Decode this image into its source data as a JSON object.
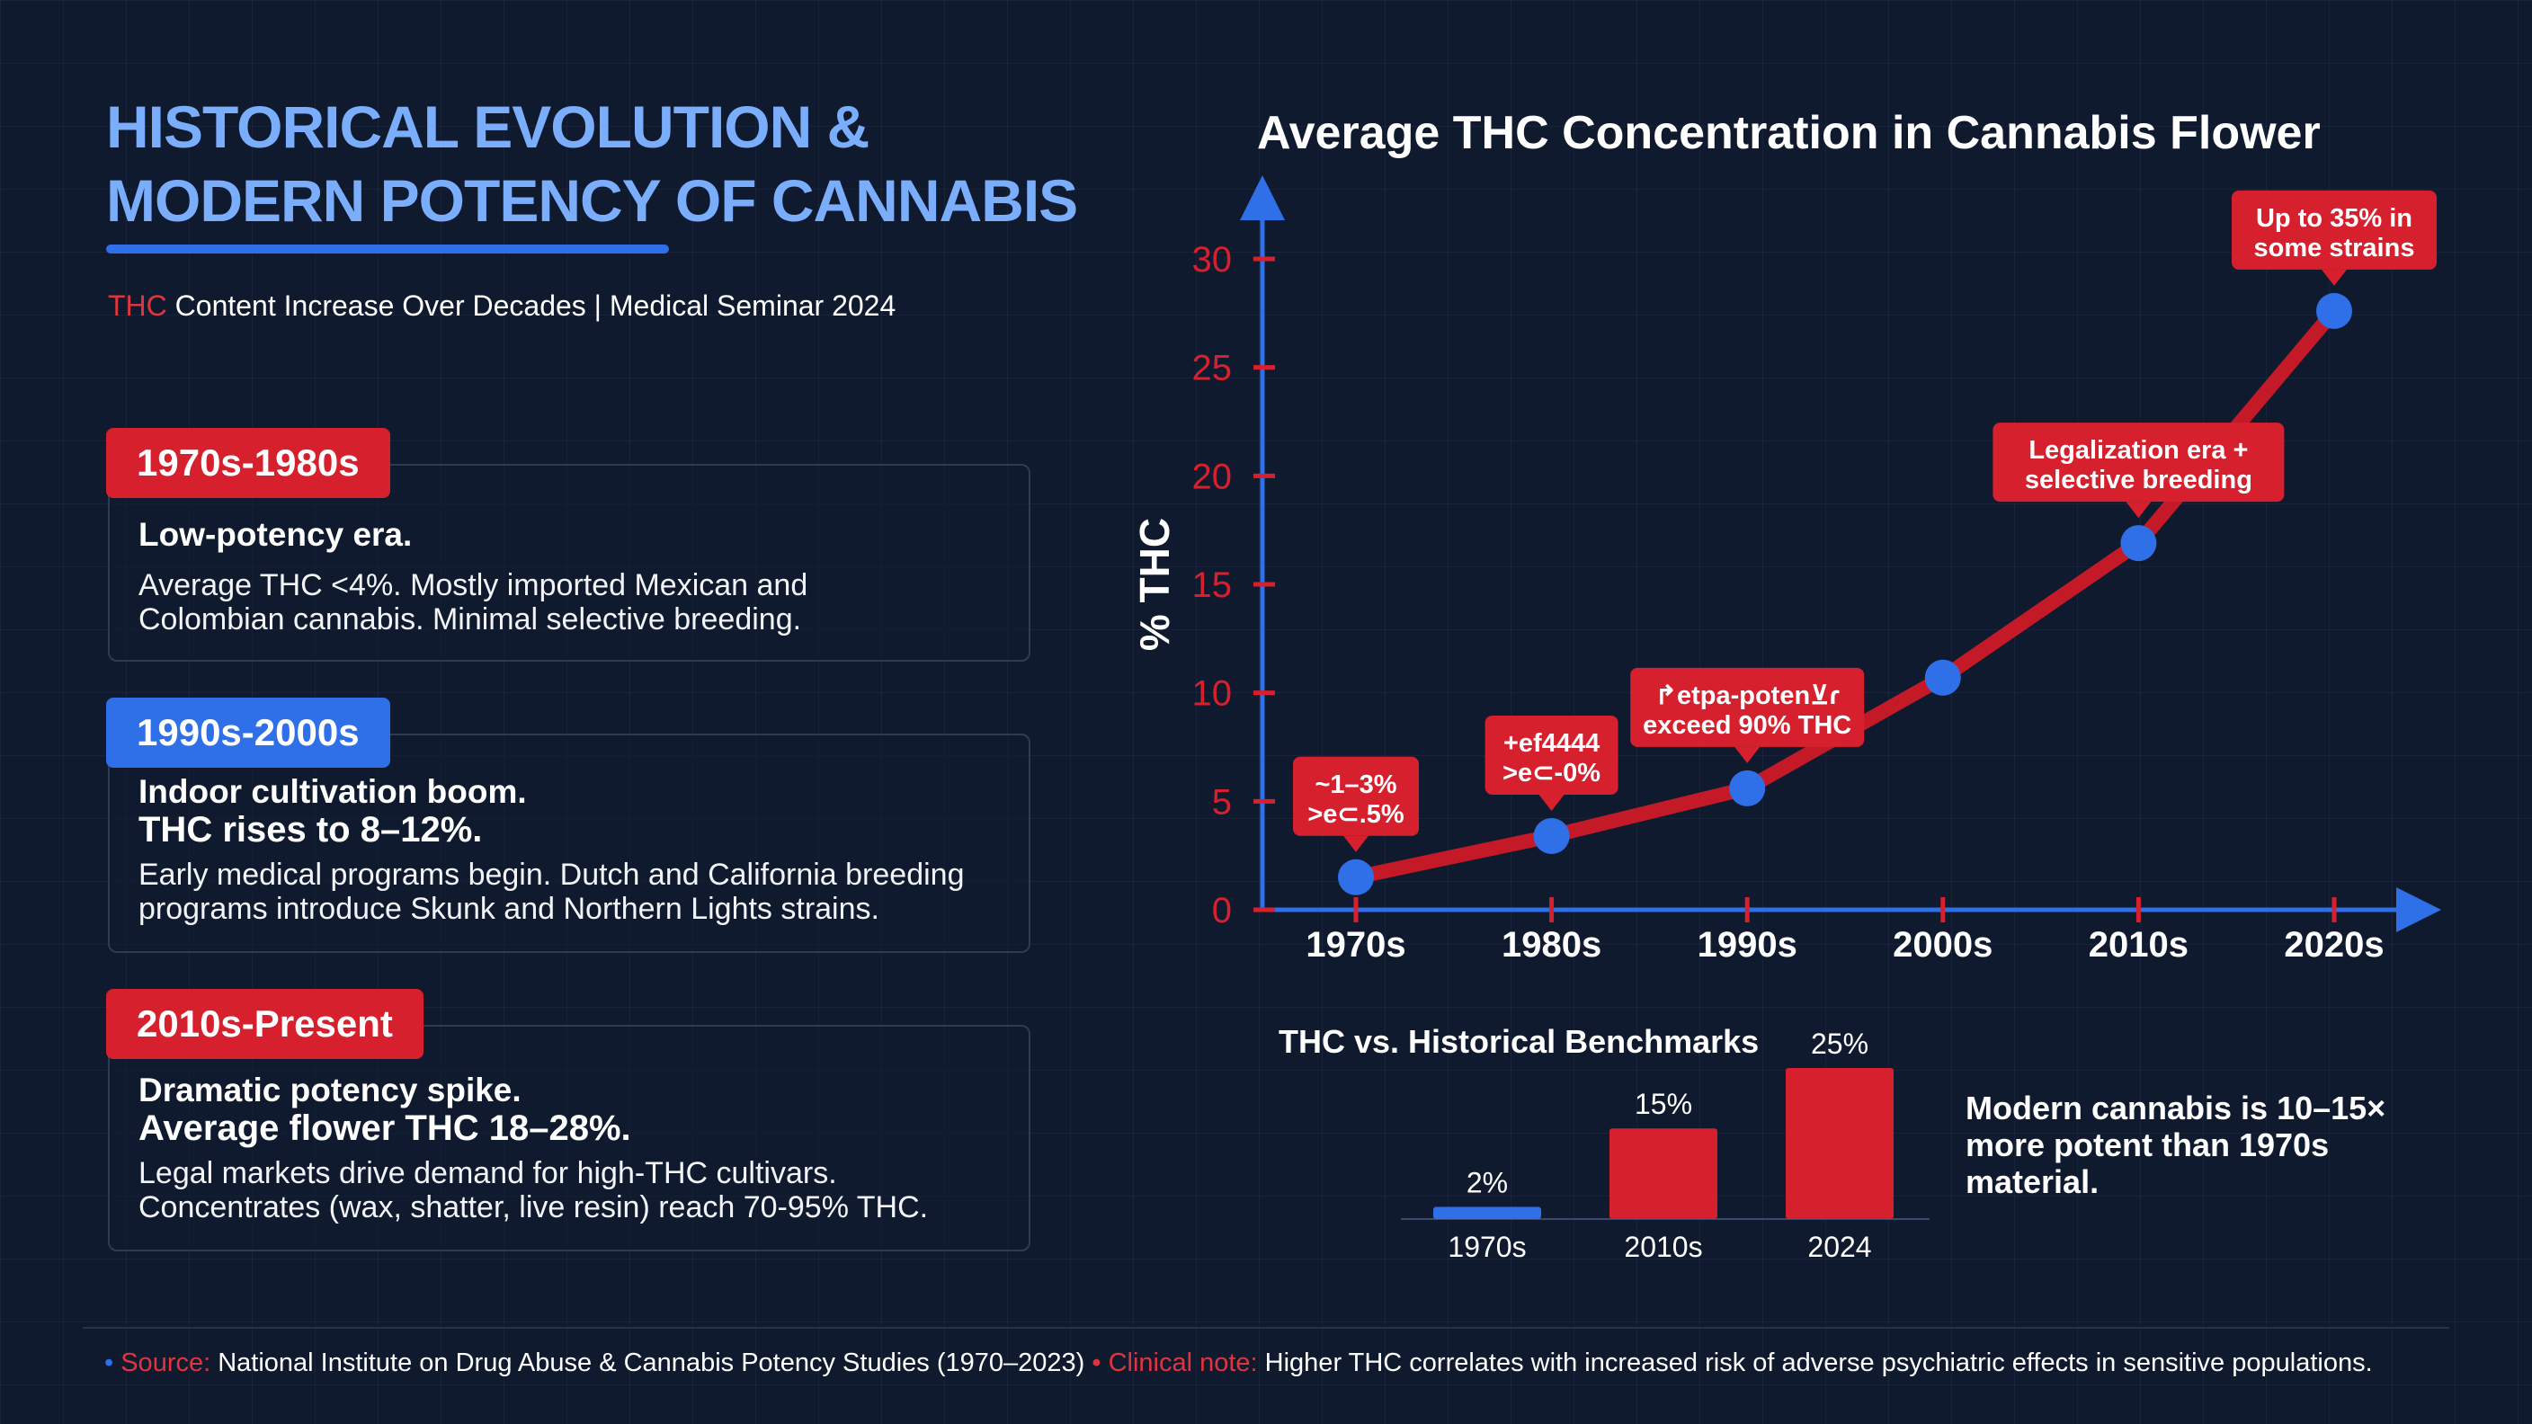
{
  "header": {
    "title_line1": "HISTORICAL EVOLUTION &",
    "title_line2": "MODERN POTENCY OF CANNABIS",
    "subtitle_accent": "THC",
    "subtitle_rest": " Content Increase Over Decades | Medical Seminar 2024"
  },
  "eras": [
    {
      "tag": "1970s-1980s",
      "headline": [
        "Low-potency era."
      ],
      "body": [
        "Average THC <4%. Mostly imported Mexican and",
        "Colombian cannabis. Minimal selective breeding."
      ]
    },
    {
      "tag": "1990s-2000s",
      "headline": [
        "Indoor cultivation boom.",
        "THC rises to 8–12%."
      ],
      "body": [
        "Early medical programs begin. Dutch and California breeding",
        "programs introduce Skunk and Northern Lights strains."
      ]
    },
    {
      "tag": "2010s-Present",
      "headline": [
        "Dramatic potency spike.",
        "Average flower THC 18–28%."
      ],
      "body": [
        "Legal markets drive demand for high-THC cultivars.",
        "Concentrates (wax, shatter, live resin) reach 70-95% THC."
      ]
    }
  ],
  "chart_data": [
    {
      "type": "line",
      "title": "Average THC Concentration in Cannabis Flower",
      "xlabel": "",
      "ylabel": "% THC",
      "categories": [
        "1970s",
        "1980s",
        "1990s",
        "2000s",
        "2010s",
        "2020s"
      ],
      "values": [
        1.5,
        3.4,
        5.6,
        10.7,
        16.9,
        27.6
      ],
      "ylim": [
        0,
        30
      ],
      "yticks": [
        0,
        5,
        10,
        15,
        20,
        25,
        30
      ],
      "annotations": [
        {
          "index": 0,
          "lines": [
            "~1–3%",
            ">e⊂.5%"
          ]
        },
        {
          "index": 1,
          "lines": [
            "+ef4444",
            ">e⊂-0%"
          ]
        },
        {
          "index": 2,
          "lines": [
            "↱etpa-poten⊻ɾ",
            "exceed 90% THC"
          ]
        },
        {
          "index": 4,
          "lines": [
            "Legalization era +",
            "selective breeding"
          ]
        },
        {
          "index": 5,
          "lines": [
            "Up to 35% in",
            "some strains"
          ]
        }
      ]
    },
    {
      "type": "bar",
      "title": "THC vs. Historical Benchmarks",
      "categories": [
        "1970s",
        "2010s",
        "2024"
      ],
      "values": [
        2,
        15,
        25
      ],
      "value_labels": [
        "2%",
        "15%",
        "25%"
      ],
      "colors": [
        "#2f6fe8",
        "#d6202e",
        "#d6202e"
      ]
    }
  ],
  "modern_note": "Modern cannabis is 10–15× more potent than 1970s material.",
  "footer": {
    "source_label": "Source:",
    "source_text": " National Institute on Drug Abuse & Cannabis Potency Studies (1970–2023) ",
    "note_label": "Clinical note:",
    "note_text": " Higher THC correlates with increased risk of adverse psychiatric effects in sensitive populations."
  },
  "colors": {
    "accent_red": "#d6202e",
    "accent_blue": "#2f6fe8",
    "title_blue": "#7aaefc",
    "background": "#101a2e"
  }
}
